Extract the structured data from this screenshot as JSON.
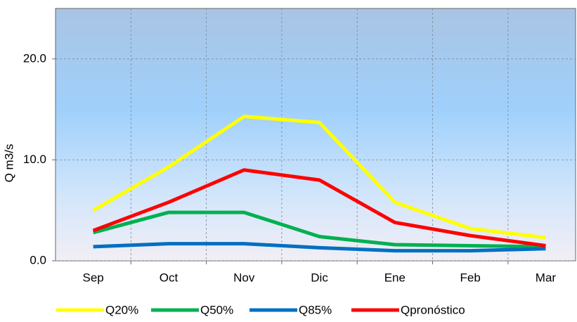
{
  "chart_data": {
    "type": "line",
    "y_label": "Q m3/s",
    "categories": [
      "Sep",
      "Oct",
      "Nov",
      "Dic",
      "Ene",
      "Feb",
      "Mar"
    ],
    "series": [
      {
        "name": "Q20%",
        "color": "#ffff00",
        "values": [
          5.0,
          9.3,
          14.3,
          13.7,
          5.8,
          3.2,
          2.3
        ]
      },
      {
        "name": "Q50%",
        "color": "#00b050",
        "values": [
          2.8,
          4.8,
          4.8,
          2.4,
          1.6,
          1.5,
          1.4
        ]
      },
      {
        "name": "Q85%",
        "color": "#0070c0",
        "values": [
          1.4,
          1.7,
          1.7,
          1.3,
          1.0,
          1.0,
          1.2
        ]
      },
      {
        "name": "Qpronóstico",
        "color": "#ff0000",
        "values": [
          3.0,
          5.8,
          9.0,
          8.0,
          3.8,
          2.5,
          1.5
        ]
      }
    ],
    "ylim": [
      0,
      25
    ],
    "yticks": [
      {
        "value": 0,
        "label": "0.0"
      },
      {
        "value": 10,
        "label": "10.0"
      },
      {
        "value": 20,
        "label": "20.0"
      }
    ],
    "grid": true
  }
}
